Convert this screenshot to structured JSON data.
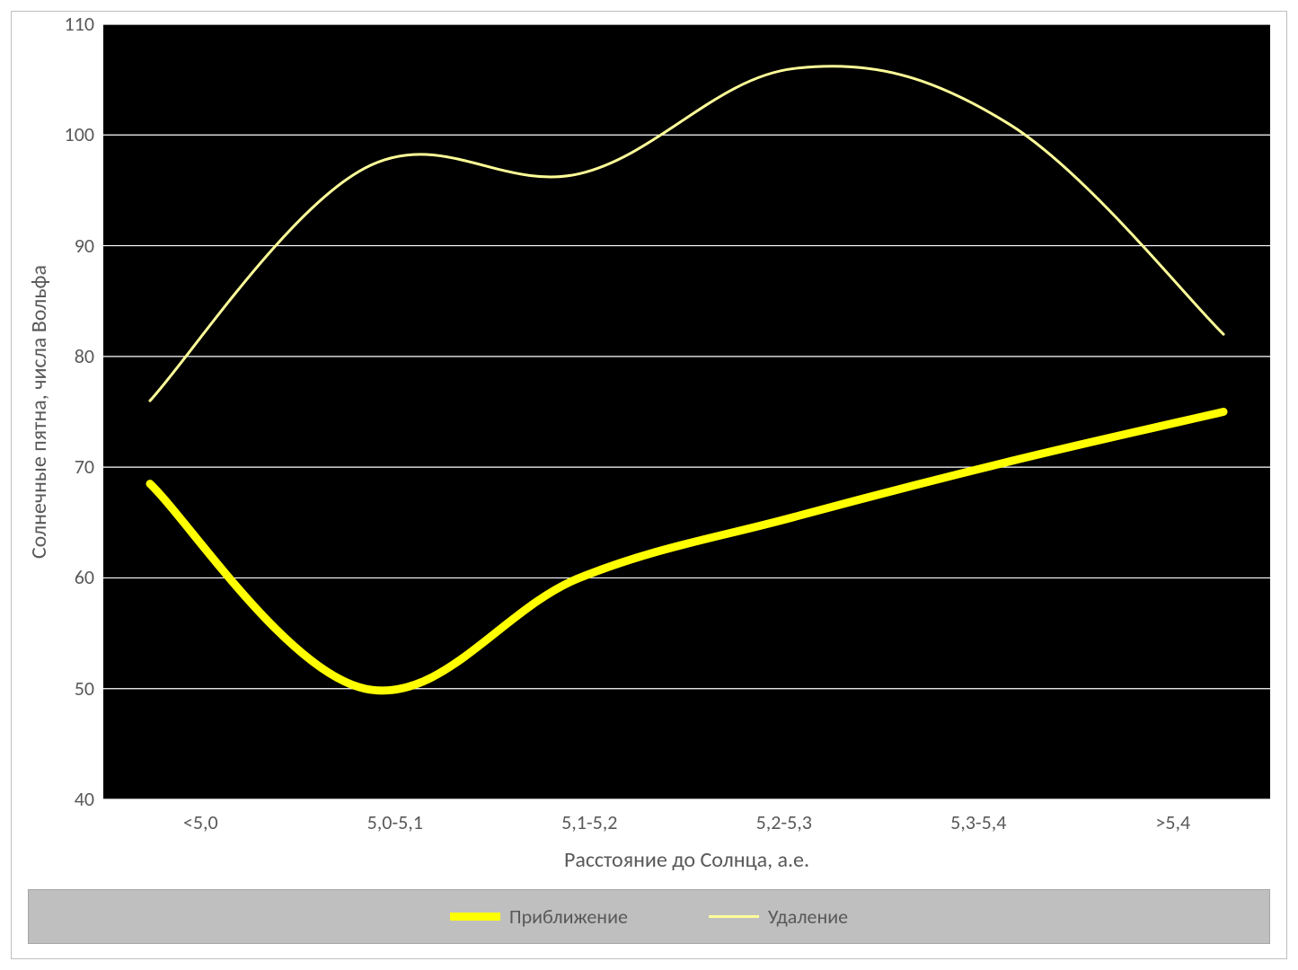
{
  "chart": {
    "type": "line",
    "background_color": "#ffffff",
    "outer_border_color": "#bfbfbf",
    "plot_background_color": "#000000",
    "grid_color": "#ffffff",
    "grid_line_width": 1.2,
    "font_family": "Calibri, Arial, sans-serif",
    "axis_label_fontsize": 24,
    "tick_fontsize": 22,
    "axis_text_color": "#595959",
    "y_axis": {
      "label": "Солнечные пятна, числа Вольфа",
      "min": 40,
      "max": 110,
      "tick_step": 10,
      "ticks": [
        110,
        100,
        90,
        80,
        70,
        60,
        50,
        40
      ]
    },
    "x_axis": {
      "label": "Расстояние до Солнца, а.е.",
      "categories": [
        "<5,0",
        "5,0-5,1",
        "5,1-5,2",
        "5,2-5,3",
        "5,3-5,4",
        ">5,4"
      ]
    },
    "series": [
      {
        "name": "Приближение",
        "label": "Приближение",
        "color": "#ffff00",
        "line_width": 9,
        "smooth": true,
        "values": [
          68.5,
          50.0,
          60.0,
          65.5,
          70.5,
          75.0
        ]
      },
      {
        "name": "Удаление",
        "label": "Удаление",
        "color": "#ffff99",
        "line_width": 3,
        "smooth": true,
        "values": [
          76.0,
          97.0,
          96.5,
          106.0,
          101.0,
          82.0
        ]
      }
    ],
    "legend": {
      "background_color": "#bfbfbf",
      "border_color": "#a6a6a6",
      "text_color": "#595959",
      "fontsize": 22,
      "line_sample_width": 56
    }
  }
}
